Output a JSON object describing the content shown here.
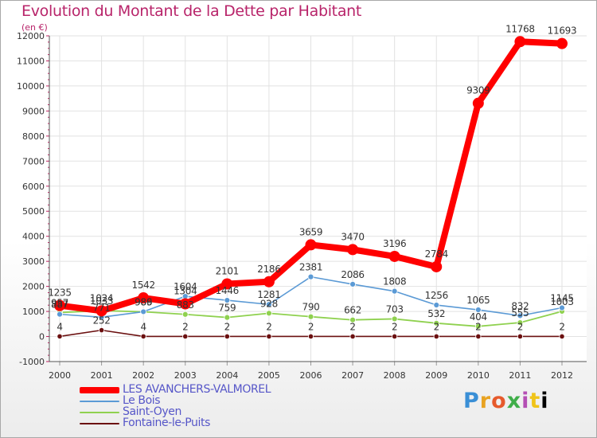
{
  "header": {
    "title": "Evolution du Montant de la Dette par Habitant",
    "unit": "(en €)"
  },
  "brand": {
    "letters": [
      "P",
      "r",
      "o",
      "x",
      "i",
      "t",
      "i"
    ]
  },
  "chart_data": {
    "type": "line",
    "title": "Evolution du Montant de la Dette par Habitant",
    "subtitle": "(en €)",
    "xlabel": "",
    "ylabel": "",
    "x": [
      "2000",
      "2001",
      "2002",
      "2003",
      "2004",
      "2005",
      "2006",
      "2007",
      "2008",
      "2009",
      "2010",
      "2011",
      "2012"
    ],
    "ylim": [
      -1000,
      12000
    ],
    "yticks": [
      -1000,
      0,
      1000,
      2000,
      3000,
      4000,
      5000,
      6000,
      7000,
      8000,
      9000,
      10000,
      11000,
      12000
    ],
    "grid": true,
    "legend_position": "bottom-left",
    "series": [
      {
        "name": "LES AVANCHERS-VALMOREL",
        "color": "#ff0000",
        "values": [
          1235,
          1024,
          1542,
          1304,
          2101,
          2186,
          3659,
          3470,
          3196,
          2784,
          9309,
          11768,
          11693
        ],
        "labels": [
          "1235",
          "1024",
          "1542",
          "1304",
          "2101",
          "2186",
          "3659",
          "3470",
          "3196",
          "2784",
          "9309",
          "11768",
          "11693"
        ]
      },
      {
        "name": "Le Bois",
        "color": "#5b9ad5",
        "values": [
          887,
          771,
          989,
          1604,
          1446,
          1281,
          2381,
          2086,
          1808,
          1256,
          1065,
          832,
          1145
        ],
        "labels": [
          "887",
          "771",
          "989",
          "1604",
          "1446",
          "1281",
          "2381",
          "2086",
          "1808",
          "1256",
          "1065",
          "832",
          "1145"
        ]
      },
      {
        "name": "Saint-Oyen",
        "color": "#8fd14f",
        "values": [
          957,
          1033,
          986,
          883,
          759,
          928,
          790,
          662,
          703,
          532,
          404,
          555,
          1003
        ],
        "labels": [
          "957",
          "1033",
          "986",
          "883",
          "759",
          "928",
          "790",
          "662",
          "703",
          "532",
          "404",
          "555",
          "1003"
        ]
      },
      {
        "name": "Fontaine-le-Puits",
        "color": "#6b1010",
        "values": [
          4,
          252,
          4,
          2,
          2,
          2,
          2,
          2,
          2,
          2,
          2,
          2,
          2
        ],
        "labels": [
          "4",
          "252",
          "4",
          "2",
          "2",
          "2",
          "2",
          "2",
          "2",
          "2",
          "2",
          "2",
          "2"
        ]
      }
    ]
  }
}
